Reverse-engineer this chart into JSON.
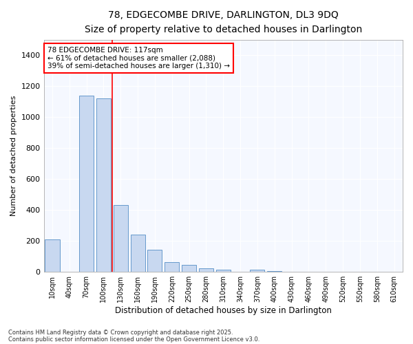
{
  "title": "78, EDGECOMBE DRIVE, DARLINGTON, DL3 9DQ",
  "subtitle": "Size of property relative to detached houses in Darlington",
  "xlabel": "Distribution of detached houses by size in Darlington",
  "ylabel": "Number of detached properties",
  "bar_color": "#c8d8f0",
  "bar_edge_color": "#6699cc",
  "background_color": "#ffffff",
  "plot_bg_color": "#f5f8ff",
  "grid_color": "#ffffff",
  "categories": [
    "10sqm",
    "40sqm",
    "70sqm",
    "100sqm",
    "130sqm",
    "160sqm",
    "190sqm",
    "220sqm",
    "250sqm",
    "280sqm",
    "310sqm",
    "340sqm",
    "370sqm",
    "400sqm",
    "430sqm",
    "460sqm",
    "490sqm",
    "520sqm",
    "550sqm",
    "580sqm",
    "610sqm"
  ],
  "values": [
    210,
    0,
    1140,
    1120,
    430,
    240,
    140,
    60,
    45,
    20,
    10,
    0,
    10,
    5,
    0,
    0,
    0,
    0,
    0,
    0,
    0
  ],
  "ylim": [
    0,
    1500
  ],
  "yticks": [
    0,
    200,
    400,
    600,
    800,
    1000,
    1200,
    1400
  ],
  "property_bin_index": 3,
  "annotation_title": "78 EDGECOMBE DRIVE: 117sqm",
  "annotation_line1": "← 61% of detached houses are smaller (2,088)",
  "annotation_line2": "39% of semi-detached houses are larger (1,310) →",
  "footer1": "Contains HM Land Registry data © Crown copyright and database right 2025.",
  "footer2": "Contains public sector information licensed under the Open Government Licence v3.0."
}
